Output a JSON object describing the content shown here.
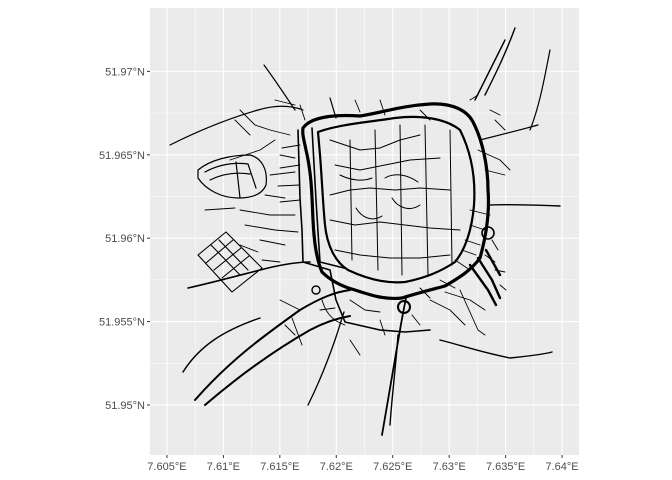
{
  "chart_data": {
    "type": "map",
    "title": "",
    "xlabel": "",
    "ylabel": "",
    "x_ticks": [
      {
        "value": 7.605,
        "label": "7.605°E"
      },
      {
        "value": 7.61,
        "label": "7.61°E"
      },
      {
        "value": 7.615,
        "label": "7.615°E"
      },
      {
        "value": 7.62,
        "label": "7.62°E"
      },
      {
        "value": 7.625,
        "label": "7.625°E"
      },
      {
        "value": 7.63,
        "label": "7.63°E"
      },
      {
        "value": 7.635,
        "label": "7.635°E"
      },
      {
        "value": 7.64,
        "label": "7.64°E"
      }
    ],
    "y_ticks": [
      {
        "value": 51.95,
        "label": "51.95°N"
      },
      {
        "value": 51.955,
        "label": "51.955°N"
      },
      {
        "value": 51.96,
        "label": "51.96°N"
      },
      {
        "value": 51.965,
        "label": "51.965°N"
      },
      {
        "value": 51.97,
        "label": "51.97°N"
      }
    ],
    "xlim": [
      7.6035,
      7.6415
    ],
    "ylim": [
      51.947,
      51.9738
    ],
    "grid": true,
    "colors": {
      "panel": "#ebebeb",
      "grid": "#ffffff",
      "lines": "#000000",
      "tick_text": "#4d4d4d"
    },
    "features": "street network"
  }
}
